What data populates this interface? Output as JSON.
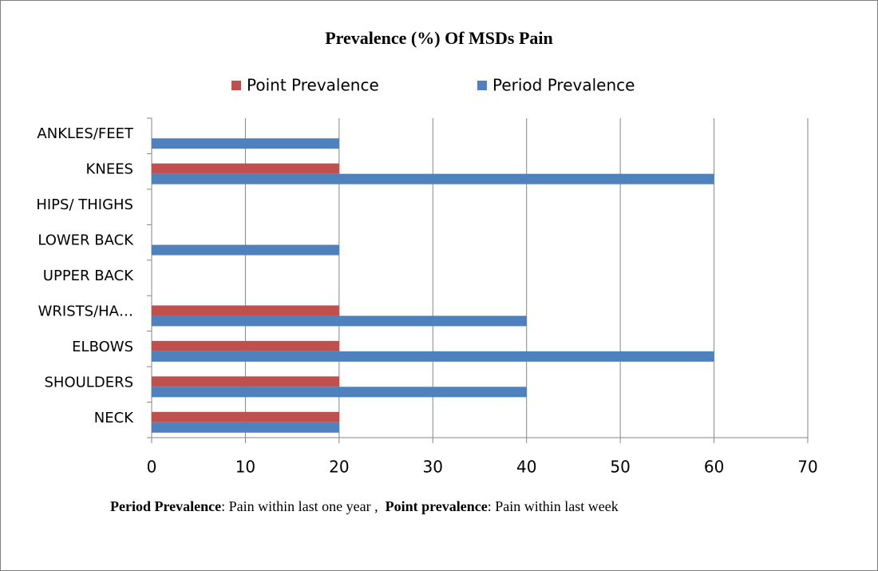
{
  "chart_data": {
    "type": "bar",
    "orientation": "horizontal",
    "title": "Prevalence (%) Of MSDs Pain",
    "categories": [
      "NECK",
      "SHOULDERS",
      "ELBOWS",
      "WRISTS/HA…",
      "UPPER BACK",
      "LOWER BACK",
      "HIPS/ THIGHS",
      "KNEES",
      "ANKLES/FEET"
    ],
    "series": [
      {
        "name": "Point Prevalence",
        "color": "#c0504d",
        "values": [
          20,
          20,
          20,
          20,
          0,
          0,
          0,
          20,
          0
        ]
      },
      {
        "name": "Period Prevalence",
        "color": "#4f81bd",
        "values": [
          20,
          40,
          60,
          40,
          0,
          20,
          0,
          60,
          20
        ]
      }
    ],
    "xlim": [
      0,
      70
    ],
    "xticks": [
      0,
      10,
      20,
      30,
      40,
      50,
      60,
      70
    ],
    "grid": true,
    "legend": "top"
  },
  "note": {
    "period_label": "Period Prevalence",
    "period_text": ": Pain within last one year ,",
    "point_label": "Point prevalence",
    "point_text": ": Pain within last week"
  }
}
